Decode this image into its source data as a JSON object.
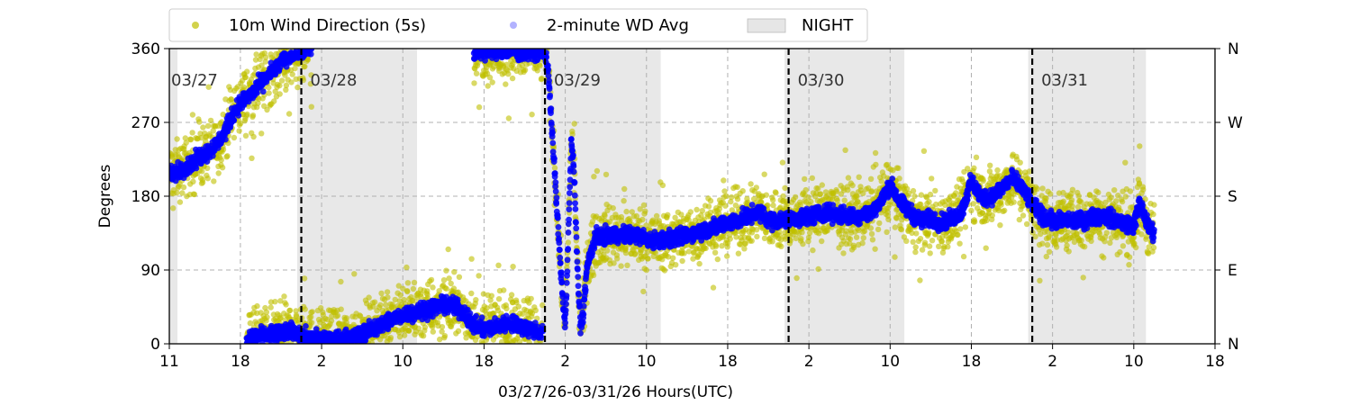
{
  "chart_data": {
    "type": "scatter",
    "title": "",
    "xlabel": "03/27/26-03/31/26  Hours(UTC)",
    "ylabel": "Degrees",
    "x_unit": "hours since 03/27 00:00 UTC",
    "xlim": [
      11,
      114
    ],
    "ylim": [
      0,
      360
    ],
    "x_ticks": [
      {
        "x": 11,
        "label": "11"
      },
      {
        "x": 18,
        "label": "18"
      },
      {
        "x": 26,
        "label": "2"
      },
      {
        "x": 34,
        "label": "10"
      },
      {
        "x": 42,
        "label": "18"
      },
      {
        "x": 50,
        "label": "2"
      },
      {
        "x": 58,
        "label": "10"
      },
      {
        "x": 66,
        "label": "18"
      },
      {
        "x": 74,
        "label": "2"
      },
      {
        "x": 82,
        "label": "10"
      },
      {
        "x": 90,
        "label": "18"
      },
      {
        "x": 98,
        "label": "2"
      },
      {
        "x": 106,
        "label": "10"
      },
      {
        "x": 114,
        "label": "18"
      }
    ],
    "y_ticks_left": [
      "0",
      "90",
      "180",
      "270",
      "360"
    ],
    "y_ticks_right": [
      "N",
      "E",
      "S",
      "W",
      "N"
    ],
    "grid": true,
    "legend_placement": "top",
    "legend": [
      {
        "label": "10m Wind Direction (5s)",
        "color": "#bfbf00",
        "marker": "dot"
      },
      {
        "label": "2-minute WD Avg",
        "color": "#0000ff",
        "marker": "dot-faded"
      },
      {
        "label": "NIGHT",
        "color": "#e6e6e6",
        "marker": "patch"
      }
    ],
    "day_lines": [
      {
        "x": 24,
        "label": "03/28"
      },
      {
        "x": 48,
        "label": "03/29"
      },
      {
        "x": 72,
        "label": "03/30"
      },
      {
        "x": 96,
        "label": "03/31"
      }
    ],
    "first_day_label": "03/27",
    "night_spans": [
      [
        11,
        11.8
      ],
      [
        23.6,
        35.4
      ],
      [
        47.6,
        59.4
      ],
      [
        71.6,
        83.4
      ],
      [
        95.6,
        107.2
      ]
    ],
    "series": [
      {
        "name": "2-minute WD Avg",
        "color": "#0000ff",
        "segments": [
          [
            [
              11,
              205
            ],
            [
              12,
              212
            ],
            [
              13,
              218
            ],
            [
              14,
              228
            ],
            [
              15,
              236
            ],
            [
              16,
              248
            ],
            [
              16.6,
              262
            ],
            [
              17.2,
              278
            ],
            [
              17.8,
              290
            ],
            [
              18.4,
              298
            ],
            [
              19.2,
              306
            ],
            [
              20,
              318
            ],
            [
              21,
              330
            ],
            [
              22,
              343
            ],
            [
              23,
              352
            ],
            [
              24,
              357
            ],
            [
              25,
              360
            ]
          ],
          [
            [
              18.6,
              0
            ],
            [
              19,
              8
            ],
            [
              20,
              10
            ],
            [
              21,
              13
            ],
            [
              22,
              15
            ],
            [
              23,
              16
            ],
            [
              24,
              10
            ],
            [
              25,
              7
            ],
            [
              26,
              6
            ],
            [
              27,
              6
            ],
            [
              28,
              6
            ],
            [
              29,
              8
            ],
            [
              30,
              12
            ],
            [
              31,
              18
            ],
            [
              32,
              24
            ],
            [
              33,
              30
            ],
            [
              34,
              35
            ],
            [
              35,
              38
            ],
            [
              36,
              41
            ],
            [
              37,
              44
            ],
            [
              38,
              48
            ],
            [
              39,
              46
            ],
            [
              40,
              38
            ],
            [
              41,
              22
            ],
            [
              42,
              18
            ],
            [
              43,
              20
            ],
            [
              44,
              25
            ],
            [
              45,
              24
            ],
            [
              46,
              20
            ],
            [
              47,
              16
            ],
            [
              47.8,
              14
            ]
          ],
          [
            [
              41,
              355
            ],
            [
              42,
              357
            ],
            [
              43,
              356
            ],
            [
              44,
              357
            ],
            [
              45,
              357
            ],
            [
              46,
              356
            ],
            [
              47,
              356
            ],
            [
              47.8,
              355
            ]
          ],
          [
            [
              48,
              360
            ],
            [
              48.4,
              320
            ],
            [
              48.8,
              240
            ],
            [
              49.2,
              160
            ],
            [
              49.6,
              80
            ],
            [
              50,
              20
            ],
            [
              50.3,
              130
            ],
            [
              50.6,
              250
            ],
            [
              50.9,
              200
            ],
            [
              51.2,
              90
            ],
            [
              51.5,
              20
            ],
            [
              51.8,
              40
            ],
            [
              52.1,
              90
            ],
            [
              52.5,
              110
            ],
            [
              53,
              130
            ],
            [
              54,
              132
            ],
            [
              55,
              134
            ],
            [
              56,
              133
            ],
            [
              57,
              132
            ],
            [
              58,
              128
            ],
            [
              59,
              126
            ],
            [
              60,
              127
            ],
            [
              61,
              129
            ],
            [
              62,
              133
            ],
            [
              63,
              136
            ],
            [
              64,
              140
            ],
            [
              65,
              143
            ],
            [
              66,
              148
            ],
            [
              67,
              150
            ],
            [
              68,
              156
            ],
            [
              69,
              160
            ],
            [
              70,
              152
            ],
            [
              71,
              150
            ],
            [
              72,
              151
            ],
            [
              73,
              153
            ],
            [
              74,
              156
            ],
            [
              75,
              158
            ],
            [
              76,
              160
            ],
            [
              77,
              157
            ],
            [
              78,
              155
            ],
            [
              79,
              157
            ],
            [
              80,
              160
            ],
            [
              81,
              170
            ],
            [
              82,
              195
            ],
            [
              83,
              172
            ],
            [
              84,
              160
            ],
            [
              85,
              150
            ],
            [
              86,
              152
            ],
            [
              87,
              148
            ],
            [
              88,
              152
            ],
            [
              89,
              160
            ],
            [
              90,
              198
            ],
            [
              91,
              178
            ],
            [
              92,
              180
            ],
            [
              93,
              190
            ],
            [
              94,
              202
            ],
            [
              95,
              190
            ],
            [
              96,
              170
            ],
            [
              97,
              155
            ],
            [
              98,
              150
            ],
            [
              99,
              150
            ],
            [
              100,
              150
            ],
            [
              101,
              150
            ],
            [
              102,
              155
            ],
            [
              103,
              156
            ],
            [
              104,
              152
            ],
            [
              105,
              148
            ],
            [
              106,
              144
            ],
            [
              106.6,
              172
            ],
            [
              107,
              158
            ],
            [
              107.5,
              140
            ],
            [
              108,
              136
            ]
          ]
        ]
      },
      {
        "name": "10m Wind Direction (5s)",
        "color": "#bfbf00",
        "note_spread_deg": 22,
        "segments": "same-path-as-avg-with-scatter"
      }
    ]
  }
}
